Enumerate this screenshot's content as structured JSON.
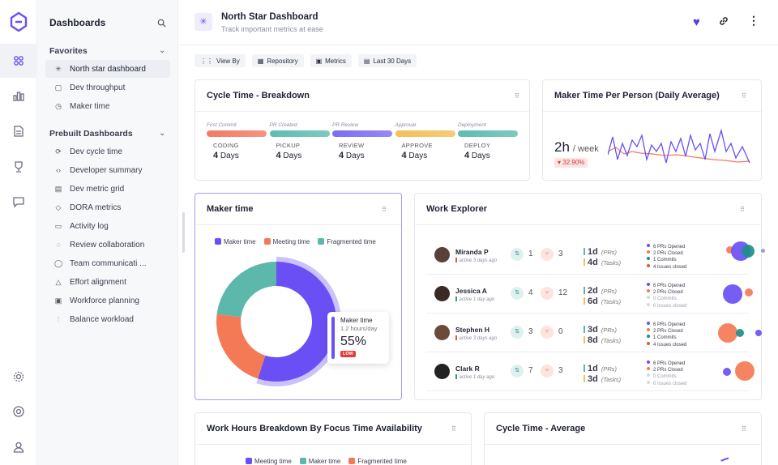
{
  "app": {
    "brand_icon": "logo-icon"
  },
  "rail": [
    {
      "name": "rail-dashboards-icon"
    },
    {
      "name": "rail-chart-icon"
    },
    {
      "name": "rail-document-icon"
    },
    {
      "name": "rail-trophy-icon"
    },
    {
      "name": "rail-chat-icon"
    },
    {
      "name": "rail-settings-icon"
    },
    {
      "name": "rail-help-icon"
    },
    {
      "name": "rail-user-icon"
    }
  ],
  "sidebar": {
    "title": "Dashboards",
    "favorites_label": "Favorites",
    "favorites": [
      {
        "label": "North star dashboard",
        "icon": "✳",
        "selected": true
      },
      {
        "label": "Dev throughput",
        "icon": "▢"
      },
      {
        "label": "Maker time",
        "icon": "◷"
      }
    ],
    "prebuilt_label": "Prebuilt Dashboards",
    "prebuilt": [
      {
        "label": "Dev cycle time",
        "icon": "⟳"
      },
      {
        "label": "Developer summary",
        "icon": "‹›"
      },
      {
        "label": "Dev metric grid",
        "icon": "▤"
      },
      {
        "label": "DORA metrics",
        "icon": "◇"
      },
      {
        "label": "Activity log",
        "icon": "▭"
      },
      {
        "label": "Review collaboration",
        "icon": "◌"
      },
      {
        "label": "Team communicati ...",
        "icon": "◯"
      },
      {
        "label": "Effort alignment",
        "icon": "△"
      },
      {
        "label": "Workforce planning",
        "icon": "▣"
      },
      {
        "label": "Balance workload",
        "icon": "⫶"
      }
    ]
  },
  "header": {
    "title": "North Star Dashboard",
    "subtitle": "Track important metrics at ease"
  },
  "filters": [
    {
      "label": "View By",
      "icon": "⋮⋮"
    },
    {
      "label": "Repository",
      "icon": "▦"
    },
    {
      "label": "Metrics",
      "icon": "▣"
    },
    {
      "label": "Last 30 Days",
      "icon": "▤"
    }
  ],
  "cycle_breakdown": {
    "title": "Cycle Time -  Breakdown",
    "stages": [
      {
        "label": "First Commit",
        "name": "CODING",
        "value": "4",
        "unit": "Days",
        "color": "#f47a63"
      },
      {
        "label": "PR Created",
        "name": "PICKUP",
        "value": "4",
        "unit": "Days",
        "color": "#5ebdae"
      },
      {
        "label": "PR Review",
        "name": "REVIEW",
        "value": "4",
        "unit": "Days",
        "color": "#7b6cf5"
      },
      {
        "label": "Approval",
        "name": "APPROVE",
        "value": "4",
        "unit": "Days",
        "color": "#f6be5a"
      },
      {
        "label": "Deployment",
        "name": "DEPLOY",
        "value": "4",
        "unit": "Days",
        "color": "#5ebdae"
      }
    ]
  },
  "maker_per_person": {
    "title": "Maker Time Per Person (Daily Average)",
    "value": "2h",
    "unit": "/ week",
    "delta": "32.90%"
  },
  "maker_time": {
    "title": "Maker time",
    "legend": [
      {
        "label": "Maker time",
        "color": "#6a4ff5"
      },
      {
        "label": "Meeting time",
        "color": "#f47a56"
      },
      {
        "label": "Fragmented time",
        "color": "#5bb8aa"
      }
    ],
    "tooltip": {
      "title": "Maker time",
      "sub": "1.2 hours/day",
      "value": "55%",
      "badge": "LOW"
    }
  },
  "chart_data": {
    "type": "pie",
    "title": "Maker time",
    "labels": [
      "Maker time",
      "Meeting time",
      "Fragmented time"
    ],
    "values": [
      55,
      22,
      23
    ]
  },
  "work_explorer": {
    "title": "Work Explorer",
    "rows": [
      {
        "name": "Miranda P",
        "status": "active 3 days ago",
        "prs": "1",
        "reviews": "3",
        "pr_time": "1d",
        "task_time": "4d",
        "iss": [
          "6 PRs Opened",
          "2 PRs Closed",
          "1 Commits",
          "4 Issues closed"
        ]
      },
      {
        "name": "Jessica A",
        "status": "active 1 day ago",
        "prs": "4",
        "reviews": "12",
        "pr_time": "2d",
        "task_time": "6d",
        "iss": [
          "6 PRs Opened",
          "2 PRs Closed",
          "0 Commits",
          "0 Issues closed"
        ]
      },
      {
        "name": "Stephen H",
        "status": "active 3 days ago",
        "prs": "3",
        "reviews": "0",
        "pr_time": "3d",
        "task_time": "8d",
        "iss": [
          "6 PRs Opened",
          "2 PRs Closed",
          "1 Commits",
          "4 Issues closed"
        ]
      },
      {
        "name": "Clark R",
        "status": "active 1 day ago",
        "prs": "7",
        "reviews": "3",
        "pr_time": "1d",
        "task_time": "3d",
        "iss": [
          "6 PRs Opened",
          "2 PRs Closed",
          "0 Commits",
          "0 Issues closed"
        ]
      }
    ],
    "prs_label": "(PRs)",
    "tasks_label": "(Tasks)"
  },
  "work_hours": {
    "title": "Work Hours Breakdown By Focus Time Availability",
    "legend": [
      {
        "label": "Meeting time",
        "color": "#6a4ff5"
      },
      {
        "label": "Maker time",
        "color": "#5bb8aa"
      },
      {
        "label": "Fragmented time",
        "color": "#f47a56"
      }
    ]
  },
  "cycle_avg": {
    "title": "Cycle Time -  Average"
  }
}
